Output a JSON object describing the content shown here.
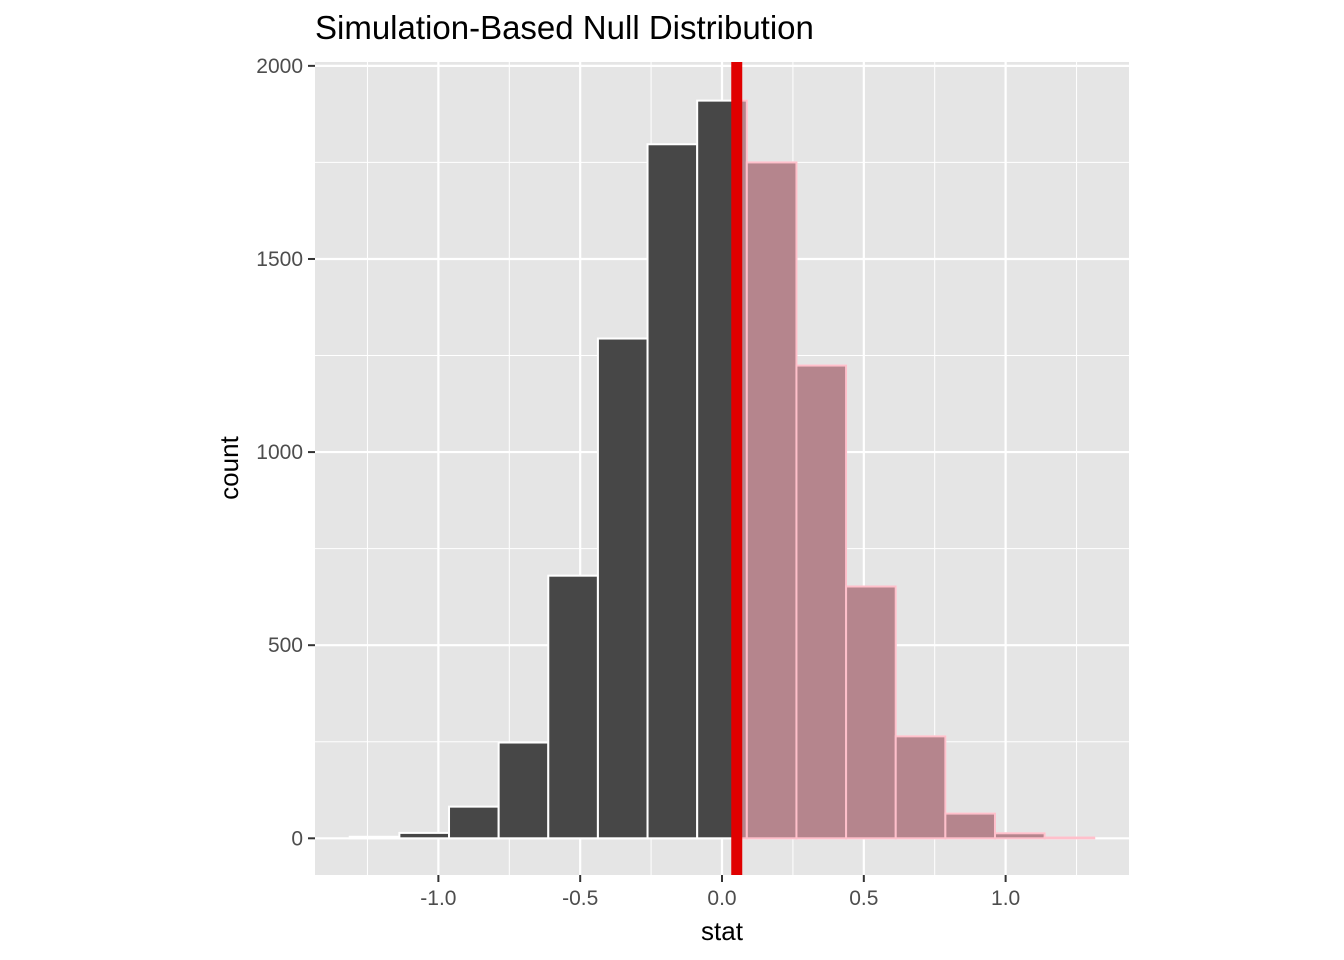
{
  "chart_data": {
    "type": "bar",
    "title": "Simulation-Based Null Distribution",
    "xlabel": "stat",
    "ylabel": "count",
    "xlim": [
      -1.435,
      1.435
    ],
    "ylim": [
      -95,
      2010
    ],
    "x_ticks": [
      -1.0,
      -0.5,
      0.0,
      0.5,
      1.0
    ],
    "x_tick_labels": [
      "-1.0",
      "-0.5",
      "0.0",
      "0.5",
      "1.0"
    ],
    "y_ticks": [
      0,
      500,
      1000,
      1500,
      2000
    ],
    "y_tick_labels": [
      "0",
      "500",
      "1000",
      "1500",
      "2000"
    ],
    "grid": true,
    "bin_width": 0.175,
    "bins": [
      {
        "start": -1.3125,
        "end": -1.1375,
        "count": 4
      },
      {
        "start": -1.1375,
        "end": -0.9625,
        "count": 14
      },
      {
        "start": -0.9625,
        "end": -0.7875,
        "count": 82
      },
      {
        "start": -0.7875,
        "end": -0.6125,
        "count": 248
      },
      {
        "start": -0.6125,
        "end": -0.4375,
        "count": 680
      },
      {
        "start": -0.4375,
        "end": -0.2625,
        "count": 1294
      },
      {
        "start": -0.2625,
        "end": -0.0875,
        "count": 1797
      },
      {
        "start": -0.0875,
        "end": 0.0875,
        "count": 1910
      },
      {
        "start": 0.0875,
        "end": 0.2625,
        "count": 1750
      },
      {
        "start": 0.2625,
        "end": 0.4375,
        "count": 1224
      },
      {
        "start": 0.4375,
        "end": 0.6125,
        "count": 652
      },
      {
        "start": 0.6125,
        "end": 0.7875,
        "count": 264
      },
      {
        "start": 0.7875,
        "end": 0.9625,
        "count": 64
      },
      {
        "start": 0.9625,
        "end": 1.1375,
        "count": 13
      },
      {
        "start": 1.1375,
        "end": 1.3125,
        "count": 2
      }
    ],
    "observed_stat": 0.052,
    "shade_direction": "greater",
    "colors": {
      "panel": "#e5e5e5",
      "grid": "#ffffff",
      "bar_fill": "#474747",
      "bar_outline": "#ffffff",
      "shade_fill": "#b5858d",
      "shade_outline": "#ffc0cb",
      "obs_line": "#e00000",
      "tick_label": "#4d4d4d",
      "tick_mark": "#333333"
    }
  }
}
